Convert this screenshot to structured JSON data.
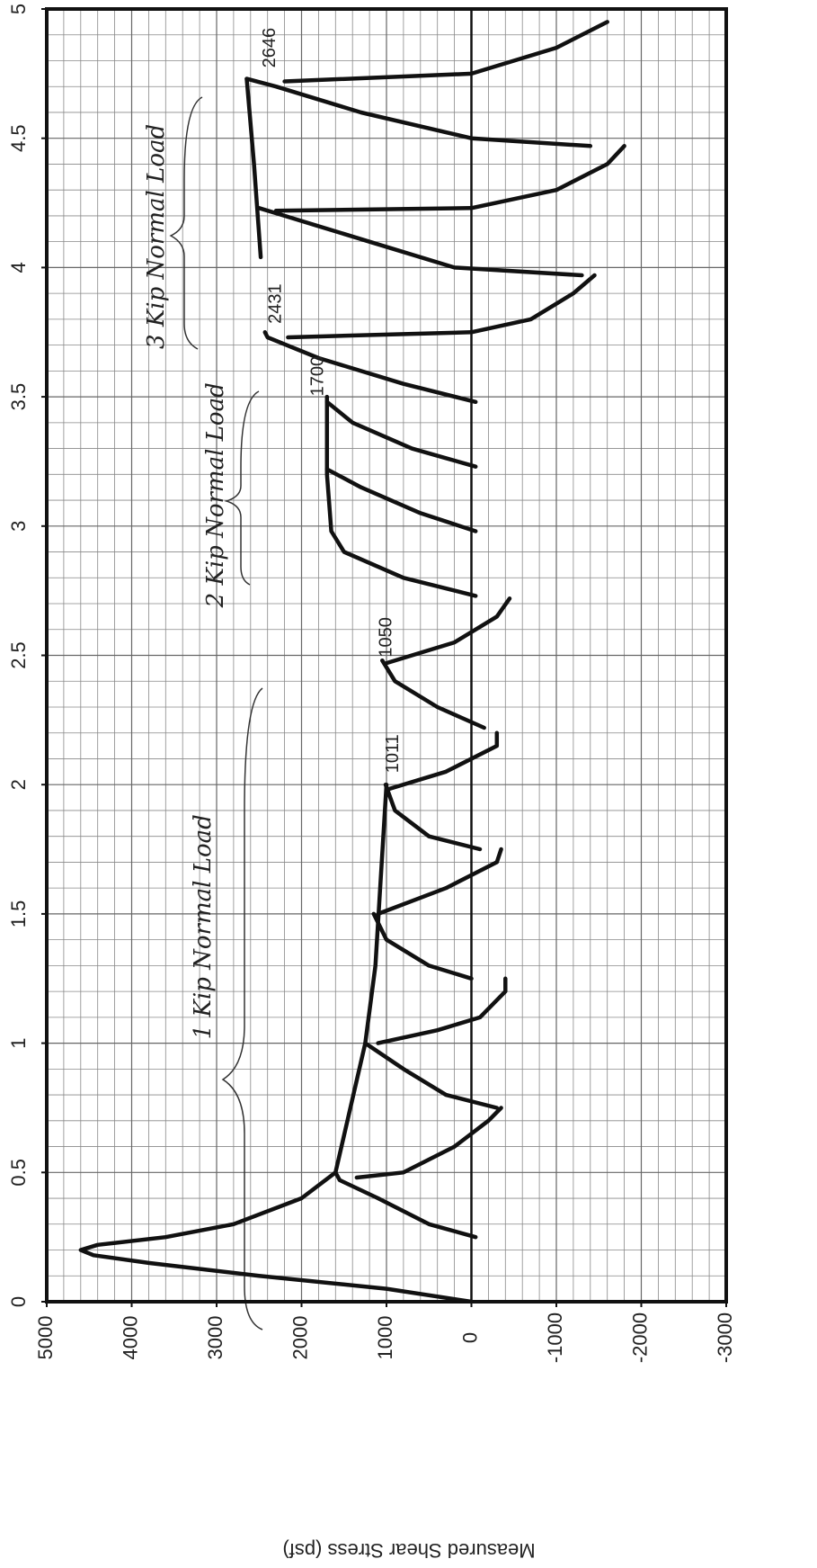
{
  "chart_data": {
    "type": "line",
    "y_label": "Measured Shear Stress (psf)",
    "xlim": [
      0,
      5
    ],
    "xticks": [
      0,
      0.5,
      1,
      1.5,
      2,
      2.5,
      3,
      3.5,
      4,
      4.5,
      5
    ],
    "ylim": [
      -3000,
      5000
    ],
    "yticks": [
      5000,
      4000,
      3000,
      2000,
      1000,
      0,
      -1000,
      -2000,
      -3000
    ],
    "grid": true,
    "annotations": [
      "2646",
      "2431",
      "1700",
      "1050",
      "1011",
      "1 Kip Normal Load",
      "2 Kip Normal Load",
      "3 Kip Normal Load"
    ],
    "series": [
      {
        "color": "#111",
        "x": [
          0,
          0.05,
          0.1,
          0.15,
          0.18,
          0.2,
          0.22,
          0.25,
          0.3,
          0.4,
          0.5,
          1.0,
          1.3,
          2.0
        ],
        "values": [
          0,
          1000,
          2500,
          3800,
          4450,
          4600,
          4400,
          3600,
          2800,
          2000,
          1600,
          1250,
          1130,
          1000
        ]
      },
      {
        "color": "#111",
        "x": [
          0.25,
          0.3,
          0.4,
          0.47,
          0.5
        ],
        "values": [
          -50,
          500,
          1100,
          1550,
          1600
        ]
      },
      {
        "color": "#111",
        "x": [
          0.48,
          0.5,
          0.6,
          0.7,
          0.75
        ],
        "values": [
          1350,
          800,
          200,
          -200,
          -350
        ]
      },
      {
        "color": "#111",
        "x": [
          0.75,
          0.8,
          0.9,
          1.0
        ],
        "values": [
          -300,
          300,
          800,
          1250
        ]
      },
      {
        "color": "#111",
        "x": [
          1.0,
          1.05,
          1.1,
          1.2,
          1.25
        ],
        "values": [
          1100,
          400,
          -100,
          -400,
          -400
        ]
      },
      {
        "color": "#111",
        "x": [
          1.25,
          1.3,
          1.4,
          1.5
        ],
        "values": [
          0,
          500,
          1000,
          1150
        ]
      },
      {
        "color": "#111",
        "x": [
          1.5,
          1.6,
          1.7,
          1.75
        ],
        "values": [
          1100,
          300,
          -300,
          -350
        ]
      },
      {
        "color": "#111",
        "x": [
          1.75,
          1.8,
          1.9,
          2.0
        ],
        "values": [
          -100,
          500,
          900,
          1011
        ]
      },
      {
        "color": "#111",
        "x": [
          1.98,
          2.05,
          2.15,
          2.2
        ],
        "values": [
          1000,
          300,
          -300,
          -300
        ]
      },
      {
        "color": "#111",
        "x": [
          2.22,
          2.3,
          2.4,
          2.48
        ],
        "values": [
          -150,
          400,
          900,
          1050
        ]
      },
      {
        "color": "#111",
        "x": [
          2.47,
          2.55,
          2.65,
          2.72
        ],
        "values": [
          1000,
          200,
          -300,
          -450
        ]
      },
      {
        "color": "#111",
        "x": [
          2.73,
          2.8,
          2.9,
          2.98,
          3.2,
          3.5
        ],
        "values": [
          -50,
          800,
          1500,
          1650,
          1700,
          1700
        ]
      },
      {
        "color": "#111",
        "x": [
          2.98,
          3.05,
          3.15,
          3.22
        ],
        "values": [
          -50,
          600,
          1300,
          1700
        ]
      },
      {
        "color": "#111",
        "x": [
          3.23,
          3.3,
          3.4,
          3.48
        ],
        "values": [
          -50,
          700,
          1400,
          1700
        ]
      },
      {
        "color": "#111",
        "x": [
          3.48,
          3.55,
          3.65,
          3.73,
          3.75
        ],
        "values": [
          -50,
          800,
          1800,
          2400,
          2431
        ]
      },
      {
        "color": "#111",
        "x": [
          3.73,
          3.75,
          3.8,
          3.9,
          3.97
        ],
        "values": [
          2160,
          0,
          -700,
          -1200,
          -1450
        ]
      },
      {
        "color": "#111",
        "x": [
          3.97,
          4.0,
          4.1,
          4.2,
          4.23
        ],
        "values": [
          -1300,
          200,
          1200,
          2200,
          2500
        ]
      },
      {
        "color": "#111",
        "x": [
          4.22,
          4.23,
          4.3,
          4.4,
          4.47
        ],
        "values": [
          2300,
          0,
          -1000,
          -1600,
          -1800
        ]
      },
      {
        "color": "#111",
        "x": [
          4.47,
          4.5,
          4.6,
          4.7,
          4.73
        ],
        "values": [
          -1400,
          0,
          1300,
          2300,
          2646
        ]
      },
      {
        "color": "#111",
        "x": [
          4.72,
          4.75,
          4.85,
          4.95
        ],
        "values": [
          2200,
          0,
          -1000,
          -1600
        ]
      },
      {
        "color": "#111",
        "x": [
          4.04,
          4.4,
          4.73
        ],
        "values": [
          2480,
          2560,
          2646
        ]
      }
    ]
  }
}
